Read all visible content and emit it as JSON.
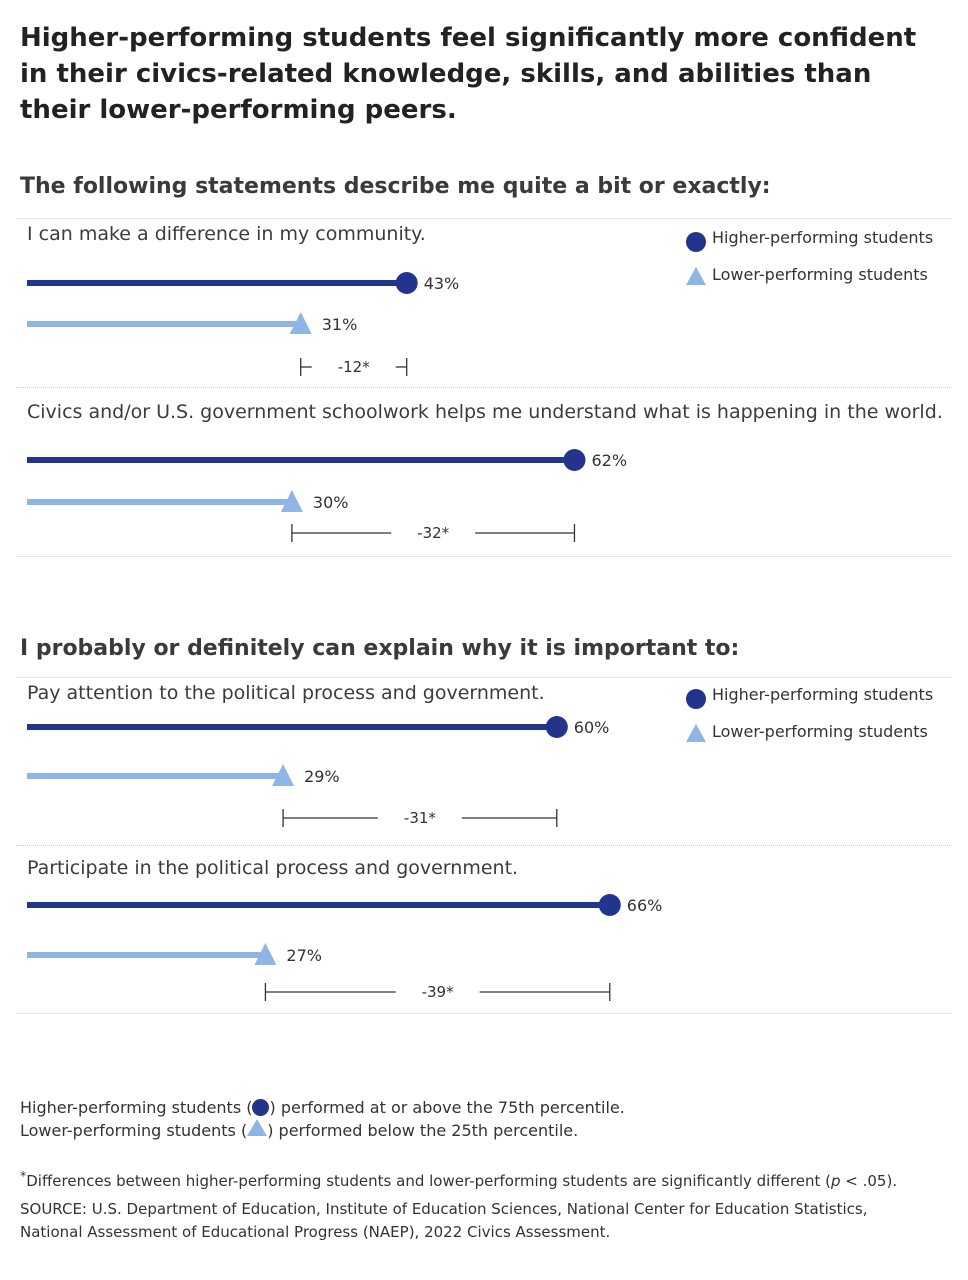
{
  "title": "Higher-performing students feel significantly more confident in their civics-related knowledge, skills, and abilities than their lower-performing peers.",
  "colors": {
    "higher": "#23348d",
    "lower": "#8fb5e5",
    "bracket": "#333333"
  },
  "legend": {
    "higher": "Higher-performing students",
    "lower": "Lower-performing students"
  },
  "chart_data": [
    {
      "type": "dumbbell",
      "title": "The following statements describe me quite a bit or exactly:",
      "x_range": [
        0,
        100
      ],
      "series": [
        {
          "name": "Higher-performing students"
        },
        {
          "name": "Lower-performing students"
        }
      ],
      "statements": [
        {
          "label": "I can make a difference in my community.",
          "higher": 43,
          "lower": 31,
          "higher_label": "43%",
          "lower_label": "31%",
          "difference_label": "-12*"
        },
        {
          "label": "Civics and/or U.S. government schoolwork helps me understand what is happening in the world.",
          "higher": 62,
          "lower": 30,
          "higher_label": "62%",
          "lower_label": "30%",
          "difference_label": "-32*"
        }
      ]
    },
    {
      "type": "dumbbell",
      "title": "I probably or definitely can explain why it is important to:",
      "x_range": [
        0,
        100
      ],
      "series": [
        {
          "name": "Higher-performing students"
        },
        {
          "name": "Lower-performing students"
        }
      ],
      "statements": [
        {
          "label": "Pay attention to the political process and government.",
          "higher": 60,
          "lower": 29,
          "higher_label": "60%",
          "lower_label": "29%",
          "difference_label": "-31*"
        },
        {
          "label": "Participate in the political process and government.",
          "higher": 66,
          "lower": 27,
          "higher_label": "66%",
          "lower_label": "27%",
          "difference_label": "-39*"
        }
      ]
    }
  ],
  "footnotes": {
    "higher_def_prefix": "Higher-performing students (",
    "higher_def_suffix": ") performed at or above the 75th percentile.",
    "lower_def_prefix": "Lower-performing students (",
    "lower_def_suffix": ") performed below the 25th percentile.",
    "significance_mark": "*",
    "significance": "Differences between higher-performing students and lower-performing students are significantly different (",
    "significance_p": "p",
    "significance_end": " < .05).",
    "source": "SOURCE: U.S. Department of Education, Institute of Education Sciences, National Center for Education Statistics,",
    "source_line2": "National Assessment of Educational Progress (NAEP), 2022 Civics Assessment."
  }
}
